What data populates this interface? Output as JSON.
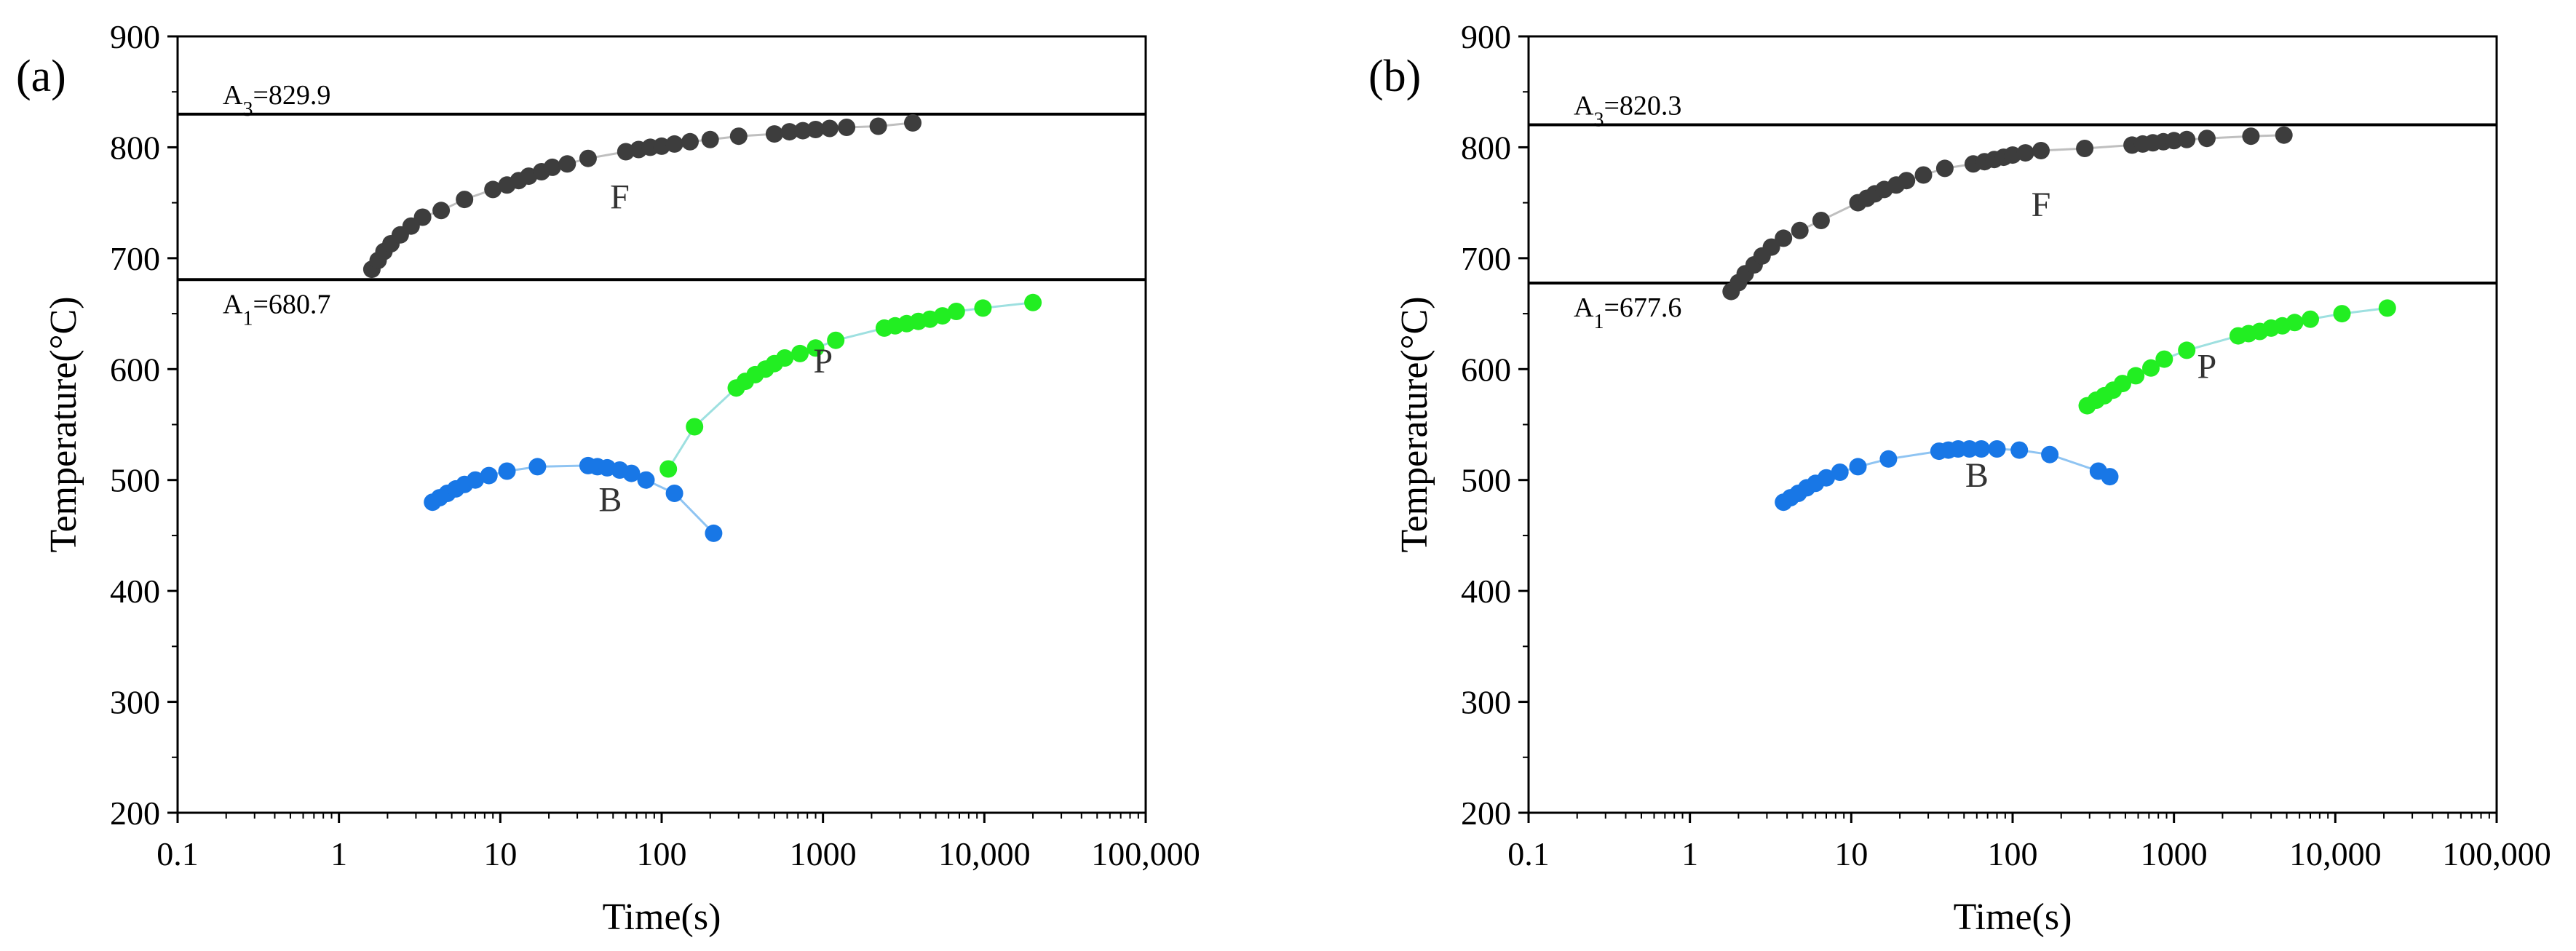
{
  "chart_data": [
    {
      "panel_label": "(a)",
      "type": "scatter",
      "x_scale": "log",
      "xlim": [
        0.1,
        100000
      ],
      "ylim": [
        200,
        900
      ],
      "xlabel": "Time(s)",
      "ylabel": "Temperature(°C)",
      "x_ticks": [
        {
          "value": 0.1,
          "label": "0.1"
        },
        {
          "value": 1,
          "label": "1"
        },
        {
          "value": 10,
          "label": "10"
        },
        {
          "value": 100,
          "label": "100"
        },
        {
          "value": 1000,
          "label": "1000"
        },
        {
          "value": 10000,
          "label": "10,000"
        },
        {
          "value": 100000,
          "label": "100,000"
        }
      ],
      "y_ticks": [
        {
          "value": 200,
          "label": "200"
        },
        {
          "value": 300,
          "label": "300"
        },
        {
          "value": 400,
          "label": "400"
        },
        {
          "value": 500,
          "label": "500"
        },
        {
          "value": 600,
          "label": "600"
        },
        {
          "value": 700,
          "label": "700"
        },
        {
          "value": 800,
          "label": "800"
        },
        {
          "value": 900,
          "label": "900"
        }
      ],
      "reference_lines": [
        {
          "name": "A3",
          "label_main": "A",
          "label_sub": "3",
          "label_rest": "=829.9",
          "value": 829.9
        },
        {
          "name": "A1",
          "label_main": "A",
          "label_sub": "1",
          "label_rest": "=680.7",
          "value": 680.7
        }
      ],
      "series": [
        {
          "name": "F",
          "label": "F",
          "color": "#3d3d3d",
          "line_color": "#bfbfbf",
          "label_at": {
            "x": 55,
            "y": 745
          },
          "points": [
            [
              1.6,
              690
            ],
            [
              1.75,
              698
            ],
            [
              1.9,
              706
            ],
            [
              2.1,
              713
            ],
            [
              2.4,
              721
            ],
            [
              2.8,
              729
            ],
            [
              3.3,
              737
            ],
            [
              4.3,
              743
            ],
            [
              6,
              753
            ],
            [
              9,
              762
            ],
            [
              11,
              766
            ],
            [
              13,
              770
            ],
            [
              15,
              774
            ],
            [
              18,
              778
            ],
            [
              21,
              782
            ],
            [
              26,
              785
            ],
            [
              35,
              790
            ],
            [
              60,
              796
            ],
            [
              72,
              798
            ],
            [
              85,
              800
            ],
            [
              100,
              801
            ],
            [
              120,
              803
            ],
            [
              150,
              805
            ],
            [
              200,
              807
            ],
            [
              300,
              810
            ],
            [
              500,
              812
            ],
            [
              620,
              814
            ],
            [
              750,
              815
            ],
            [
              900,
              816
            ],
            [
              1100,
              817
            ],
            [
              1400,
              818
            ],
            [
              2200,
              819
            ],
            [
              3600,
              822
            ]
          ]
        },
        {
          "name": "B",
          "label": "B",
          "color": "#1877e6",
          "line_color": "#8fc4f2",
          "label_at": {
            "x": 48,
            "y": 472
          },
          "points": [
            [
              3.8,
              480
            ],
            [
              4.2,
              484
            ],
            [
              4.7,
              488
            ],
            [
              5.3,
              492
            ],
            [
              6,
              496
            ],
            [
              7,
              500
            ],
            [
              8.5,
              504
            ],
            [
              11,
              508
            ],
            [
              17,
              512
            ],
            [
              35,
              513
            ],
            [
              40,
              512
            ],
            [
              46,
              511
            ],
            [
              55,
              509
            ],
            [
              65,
              506
            ],
            [
              80,
              500
            ],
            [
              120,
              488
            ],
            [
              210,
              452
            ]
          ]
        },
        {
          "name": "P",
          "label": "P",
          "color": "#22ee22",
          "line_color": "#9ee0e0",
          "label_at": {
            "x": 1000,
            "y": 597
          },
          "points": [
            [
              110,
              510
            ],
            [
              160,
              548
            ],
            [
              290,
              583
            ],
            [
              330,
              589
            ],
            [
              380,
              595
            ],
            [
              440,
              600
            ],
            [
              500,
              605
            ],
            [
              580,
              610
            ],
            [
              720,
              614
            ],
            [
              900,
              619
            ],
            [
              1200,
              626
            ],
            [
              2400,
              637
            ],
            [
              2800,
              639
            ],
            [
              3300,
              641
            ],
            [
              3900,
              643
            ],
            [
              4600,
              645
            ],
            [
              5500,
              648
            ],
            [
              6700,
              652
            ],
            [
              9800,
              655
            ],
            [
              20000,
              660
            ]
          ]
        }
      ]
    },
    {
      "panel_label": "(b)",
      "type": "scatter",
      "x_scale": "log",
      "xlim": [
        0.1,
        100000
      ],
      "ylim": [
        200,
        900
      ],
      "xlabel": "Time(s)",
      "ylabel": "Temperature(°C)",
      "x_ticks": [
        {
          "value": 0.1,
          "label": "0.1"
        },
        {
          "value": 1,
          "label": "1"
        },
        {
          "value": 10,
          "label": "10"
        },
        {
          "value": 100,
          "label": "100"
        },
        {
          "value": 1000,
          "label": "1000"
        },
        {
          "value": 10000,
          "label": "10,000"
        },
        {
          "value": 100000,
          "label": "100,000"
        }
      ],
      "y_ticks": [
        {
          "value": 200,
          "label": "200"
        },
        {
          "value": 300,
          "label": "300"
        },
        {
          "value": 400,
          "label": "400"
        },
        {
          "value": 500,
          "label": "500"
        },
        {
          "value": 600,
          "label": "600"
        },
        {
          "value": 700,
          "label": "700"
        },
        {
          "value": 800,
          "label": "800"
        },
        {
          "value": 900,
          "label": "900"
        }
      ],
      "reference_lines": [
        {
          "name": "A3",
          "label_main": "A",
          "label_sub": "3",
          "label_rest": "=820.3",
          "value": 820.3
        },
        {
          "name": "A1",
          "label_main": "A",
          "label_sub": "1",
          "label_rest": "=677.6",
          "value": 677.6
        }
      ],
      "series": [
        {
          "name": "F",
          "label": "F",
          "color": "#3d3d3d",
          "line_color": "#bfbfbf",
          "label_at": {
            "x": 150,
            "y": 738
          },
          "points": [
            [
              1.8,
              670
            ],
            [
              2,
              678
            ],
            [
              2.2,
              686
            ],
            [
              2.5,
              694
            ],
            [
              2.8,
              702
            ],
            [
              3.2,
              710
            ],
            [
              3.8,
              718
            ],
            [
              4.8,
              725
            ],
            [
              6.5,
              734
            ],
            [
              11,
              750
            ],
            [
              12.5,
              754
            ],
            [
              14,
              758
            ],
            [
              16,
              762
            ],
            [
              19,
              766
            ],
            [
              22,
              770
            ],
            [
              28,
              775
            ],
            [
              38,
              781
            ],
            [
              57,
              785
            ],
            [
              67,
              787
            ],
            [
              77,
              789
            ],
            [
              88,
              791
            ],
            [
              100,
              793
            ],
            [
              120,
              795
            ],
            [
              150,
              797
            ],
            [
              280,
              799
            ],
            [
              550,
              802
            ],
            [
              640,
              803
            ],
            [
              740,
              804
            ],
            [
              860,
              805
            ],
            [
              1000,
              806
            ],
            [
              1200,
              807
            ],
            [
              1600,
              808
            ],
            [
              3000,
              810
            ],
            [
              4800,
              811
            ]
          ]
        },
        {
          "name": "B",
          "label": "B",
          "color": "#1877e6",
          "line_color": "#8fc4f2",
          "label_at": {
            "x": 60,
            "y": 494
          },
          "points": [
            [
              3.8,
              480
            ],
            [
              4.2,
              484
            ],
            [
              4.7,
              488
            ],
            [
              5.3,
              493
            ],
            [
              6,
              497
            ],
            [
              7,
              502
            ],
            [
              8.5,
              507
            ],
            [
              11,
              512
            ],
            [
              17,
              519
            ],
            [
              35,
              526
            ],
            [
              40,
              527
            ],
            [
              46,
              528
            ],
            [
              54,
              528
            ],
            [
              64,
              528
            ],
            [
              80,
              528
            ],
            [
              110,
              527
            ],
            [
              170,
              523
            ],
            [
              340,
              508
            ],
            [
              400,
              503
            ]
          ]
        },
        {
          "name": "P",
          "label": "P",
          "color": "#22ee22",
          "line_color": "#9ee0e0",
          "label_at": {
            "x": 1600,
            "y": 592
          },
          "points": [
            [
              290,
              567
            ],
            [
              330,
              572
            ],
            [
              370,
              576
            ],
            [
              420,
              581
            ],
            [
              480,
              587
            ],
            [
              580,
              594
            ],
            [
              720,
              601
            ],
            [
              870,
              609
            ],
            [
              1200,
              617
            ],
            [
              2500,
              630
            ],
            [
              2900,
              632
            ],
            [
              3400,
              634
            ],
            [
              4000,
              637
            ],
            [
              4700,
              639
            ],
            [
              5600,
              642
            ],
            [
              7000,
              645
            ],
            [
              11000,
              650
            ],
            [
              21000,
              655
            ]
          ]
        }
      ]
    }
  ]
}
